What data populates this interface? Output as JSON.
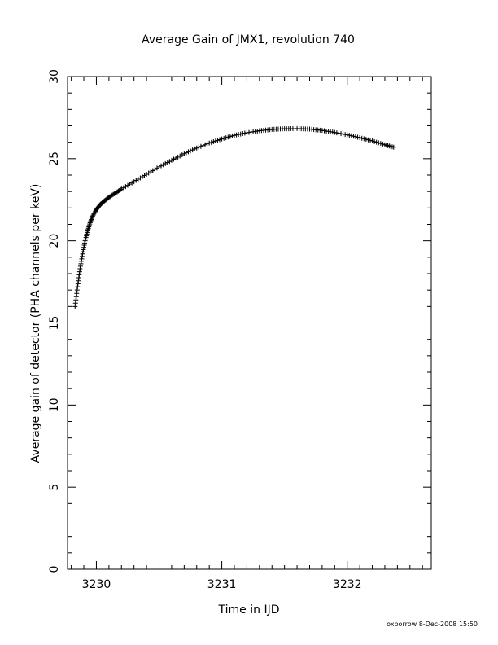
{
  "chart_data": {
    "type": "scatter",
    "title": "Average Gain of JMX1, revolution 740",
    "xlabel": "Time in IJD",
    "ylabel": "Average gain of detector (PHA channels per keV)",
    "xlim": [
      3229.77,
      3232.67
    ],
    "ylim": [
      0,
      30
    ],
    "x_ticks": [
      3230,
      3231,
      3232
    ],
    "y_ticks": [
      0,
      5,
      10,
      15,
      20,
      25,
      30
    ],
    "x_minor_step": 0.1,
    "y_minor_step": 1,
    "marker": "plus",
    "color": "#000000",
    "grid": false,
    "x": [
      3229.83,
      3229.85,
      3229.87,
      3229.89,
      3229.91,
      3229.93,
      3229.95,
      3229.97,
      3230.0,
      3230.03,
      3230.06,
      3230.1,
      3230.15,
      3230.2,
      3230.3,
      3230.4,
      3230.5,
      3230.6,
      3230.7,
      3230.8,
      3230.9,
      3231.0,
      3231.1,
      3231.2,
      3231.3,
      3231.4,
      3231.5,
      3231.6,
      3231.7,
      3231.8,
      3231.9,
      3232.0,
      3232.1,
      3232.2,
      3232.3,
      3232.37
    ],
    "y": [
      16.0,
      17.2,
      18.3,
      19.2,
      20.0,
      20.6,
      21.1,
      21.5,
      21.9,
      22.2,
      22.4,
      22.65,
      22.9,
      23.15,
      23.6,
      24.05,
      24.5,
      24.9,
      25.3,
      25.65,
      25.95,
      26.2,
      26.42,
      26.58,
      26.7,
      26.78,
      26.82,
      26.83,
      26.8,
      26.72,
      26.6,
      26.45,
      26.28,
      26.08,
      25.85,
      25.7
    ]
  },
  "footer": "oxborrow  8-Dec-2008 15:50"
}
